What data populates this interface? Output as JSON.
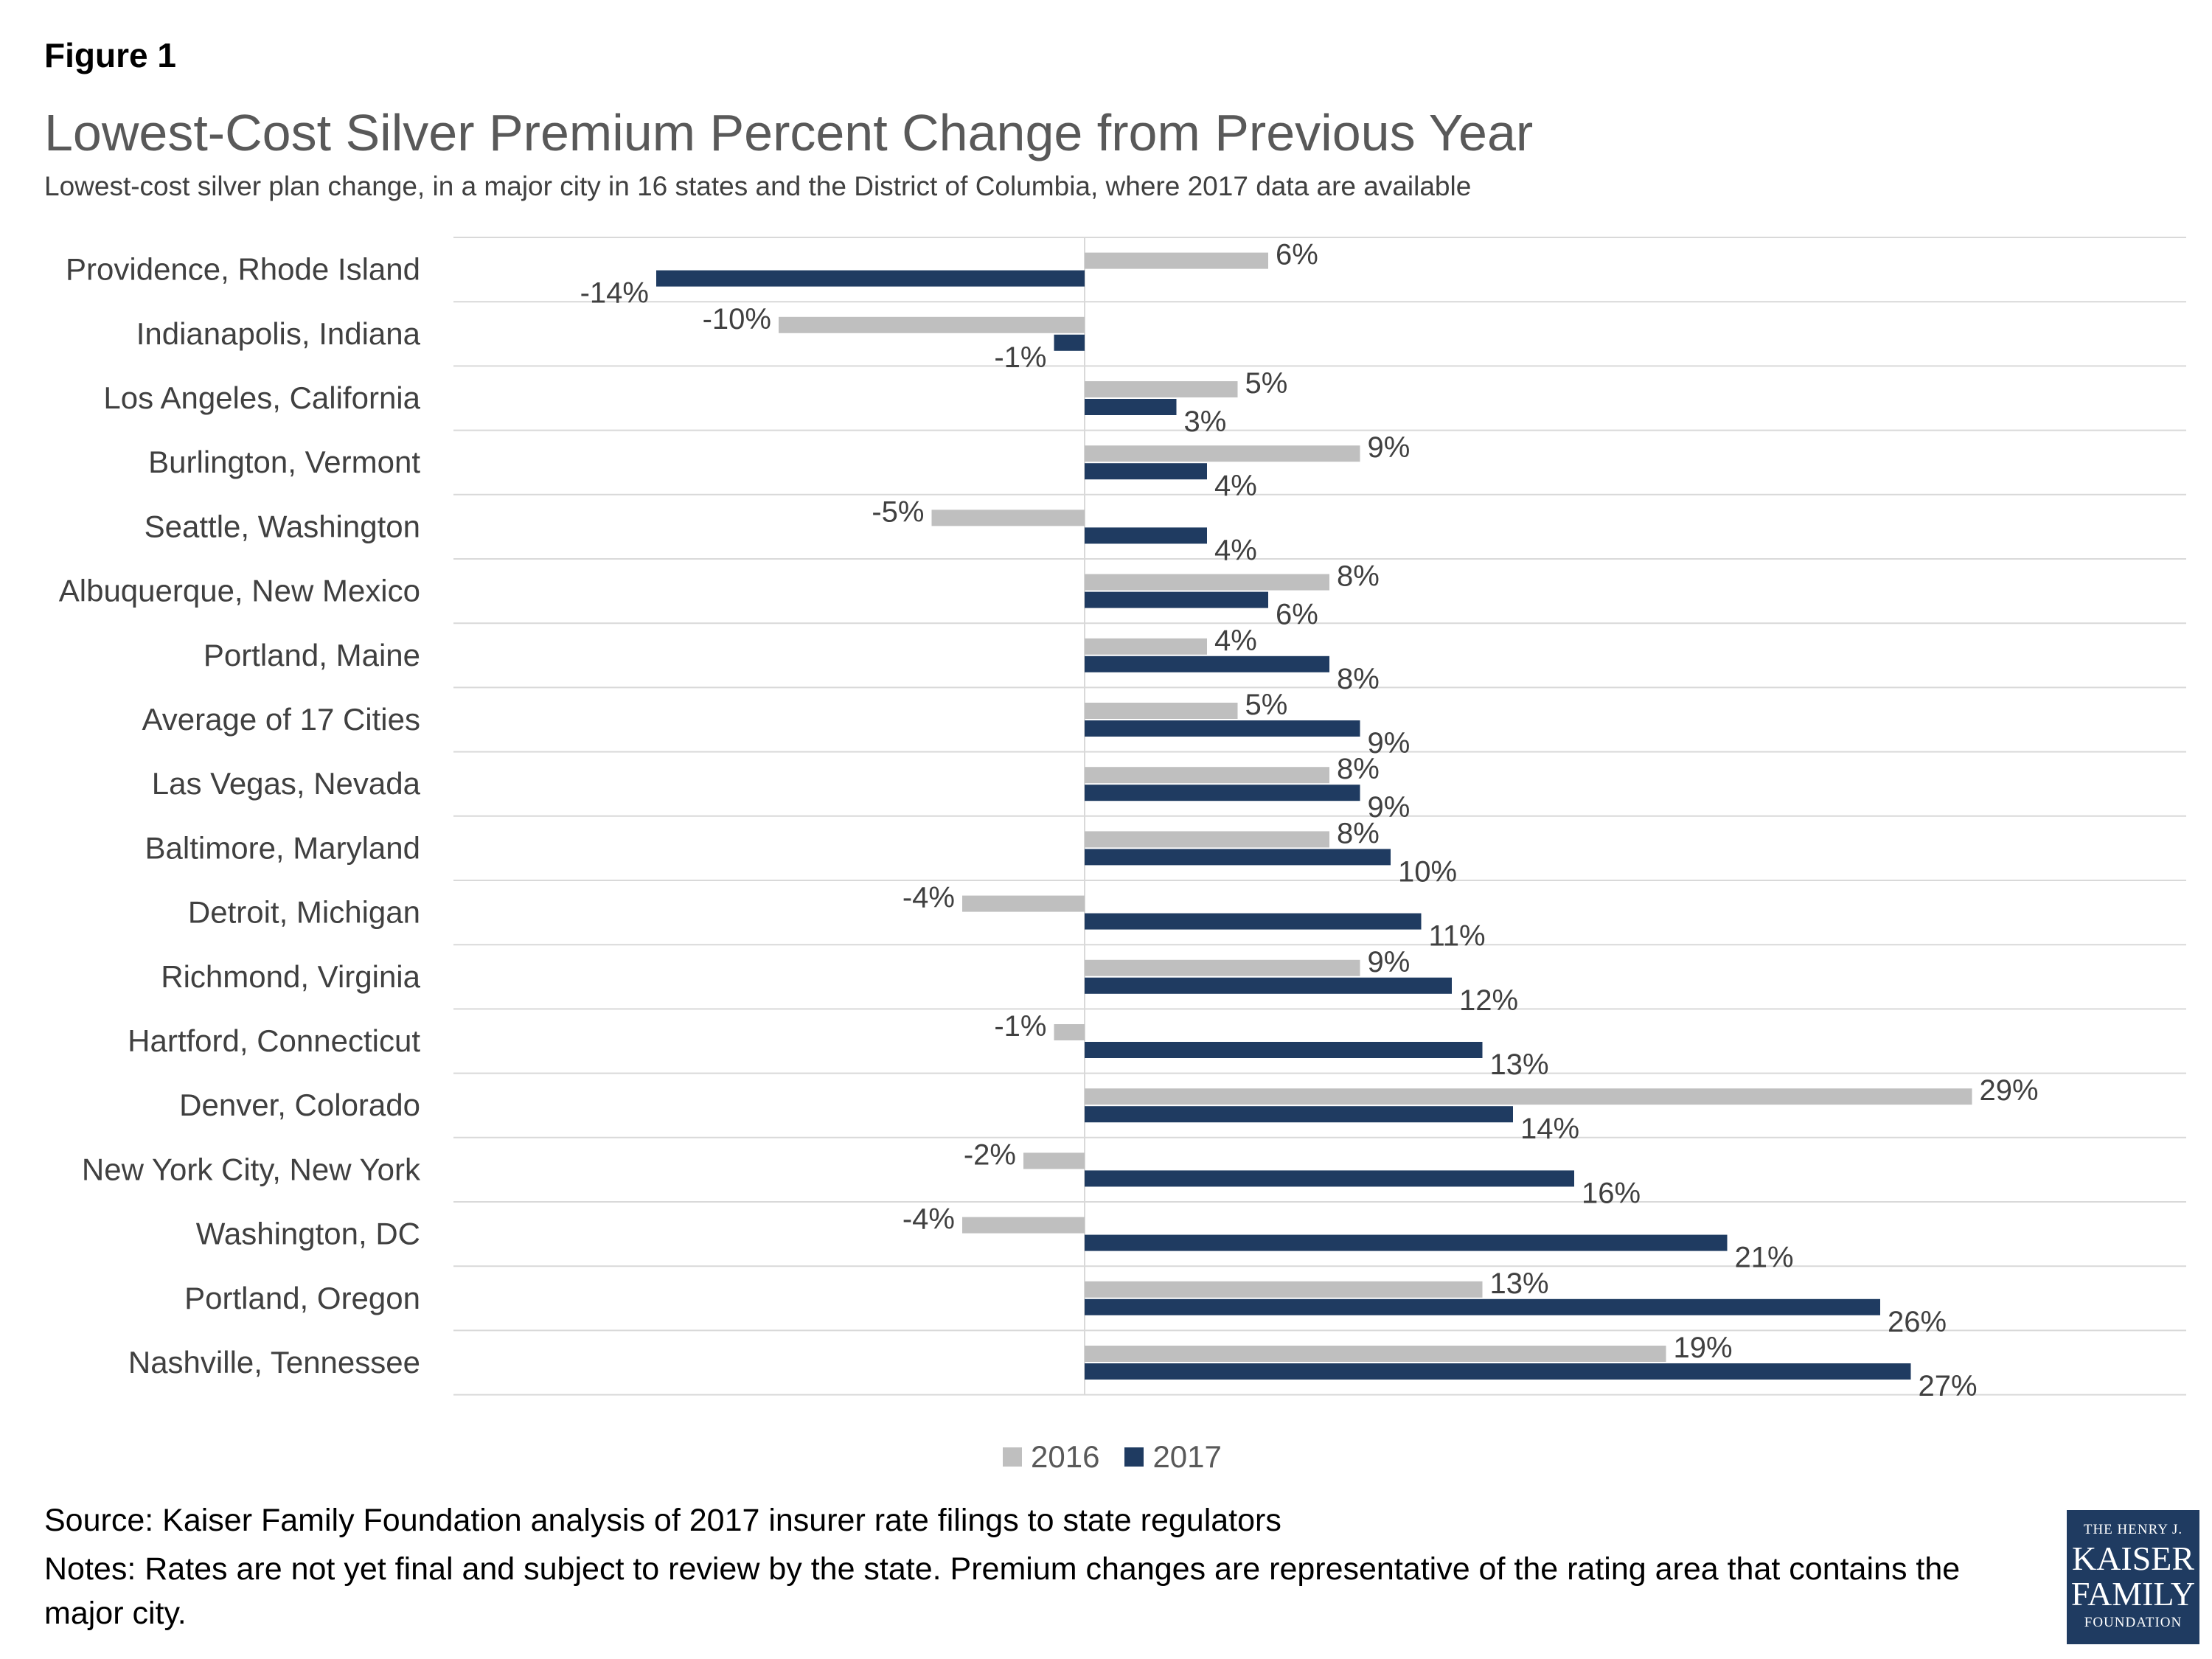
{
  "figure_label": "Figure 1",
  "colors": {
    "series_2016": "#bfbfbf",
    "series_2017": "#1f3b61",
    "gridline": "#d9d9d9"
  },
  "chart_data": {
    "type": "bar",
    "orientation": "horizontal",
    "title": "Lowest-Cost Silver Premium Percent Change from Previous Year",
    "subtitle": "Lowest-cost silver plan change, in a major city in 16 states and the District of Columbia, where 2017 data are available",
    "xlim": [
      -20,
      35
    ],
    "unit": "%",
    "categories": [
      "Providence, Rhode Island",
      "Indianapolis, Indiana",
      "Los Angeles, California",
      "Burlington, Vermont",
      "Seattle, Washington",
      "Albuquerque, New Mexico",
      "Portland, Maine",
      "Average of 17 Cities",
      "Las Vegas, Nevada",
      "Baltimore, Maryland",
      "Detroit, Michigan",
      "Richmond, Virginia",
      "Hartford, Connecticut",
      "Denver, Colorado",
      "New York City, New York",
      "Washington, DC",
      "Portland, Oregon",
      "Nashville, Tennessee"
    ],
    "series": [
      {
        "name": "2016",
        "values": [
          6,
          -10,
          5,
          9,
          -5,
          8,
          4,
          5,
          8,
          8,
          -4,
          9,
          -1,
          29,
          -2,
          -4,
          13,
          19
        ]
      },
      {
        "name": "2017",
        "values": [
          -14,
          -1,
          3,
          4,
          4,
          6,
          8,
          9,
          9,
          10,
          11,
          12,
          13,
          14,
          16,
          21,
          26,
          27
        ]
      }
    ],
    "legend": [
      "2016",
      "2017"
    ],
    "legend_position": "bottom"
  },
  "legend": {
    "label_2016": "2016",
    "label_2017": "2017"
  },
  "footer": {
    "source": "Source: Kaiser Family Foundation analysis of 2017 insurer rate filings to state regulators",
    "notes": "Notes: Rates are not yet final and subject to review by the state. Premium changes are representative of the rating area that contains the major city."
  },
  "logo": {
    "line1": "THE HENRY J.",
    "line2": "KAISER",
    "line3": "FAMILY",
    "line4": "FOUNDATION"
  }
}
